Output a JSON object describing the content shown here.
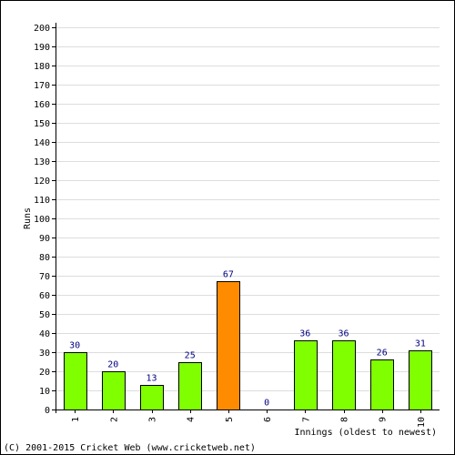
{
  "chart_data": {
    "type": "bar",
    "categories": [
      "1",
      "2",
      "3",
      "4",
      "5",
      "6",
      "7",
      "8",
      "9",
      "10"
    ],
    "values": [
      30,
      20,
      13,
      25,
      67,
      0,
      36,
      36,
      26,
      31
    ],
    "bar_colors": [
      "#80ff00",
      "#80ff00",
      "#80ff00",
      "#80ff00",
      "#ff8c00",
      "#80ff00",
      "#80ff00",
      "#80ff00",
      "#80ff00",
      "#80ff00"
    ],
    "ylabel": "Runs",
    "xlabel": "Innings (oldest to newest)",
    "ylim": [
      0,
      200
    ],
    "ytick_step": 10,
    "grid": true
  },
  "footer": {
    "copyright": "(C) 2001-2015 Cricket Web (www.cricketweb.net)"
  },
  "colors": {
    "bar_default": "#80ff00",
    "bar_highlight": "#ff8c00",
    "data_label": "#000080",
    "grid": "#dddddd"
  }
}
